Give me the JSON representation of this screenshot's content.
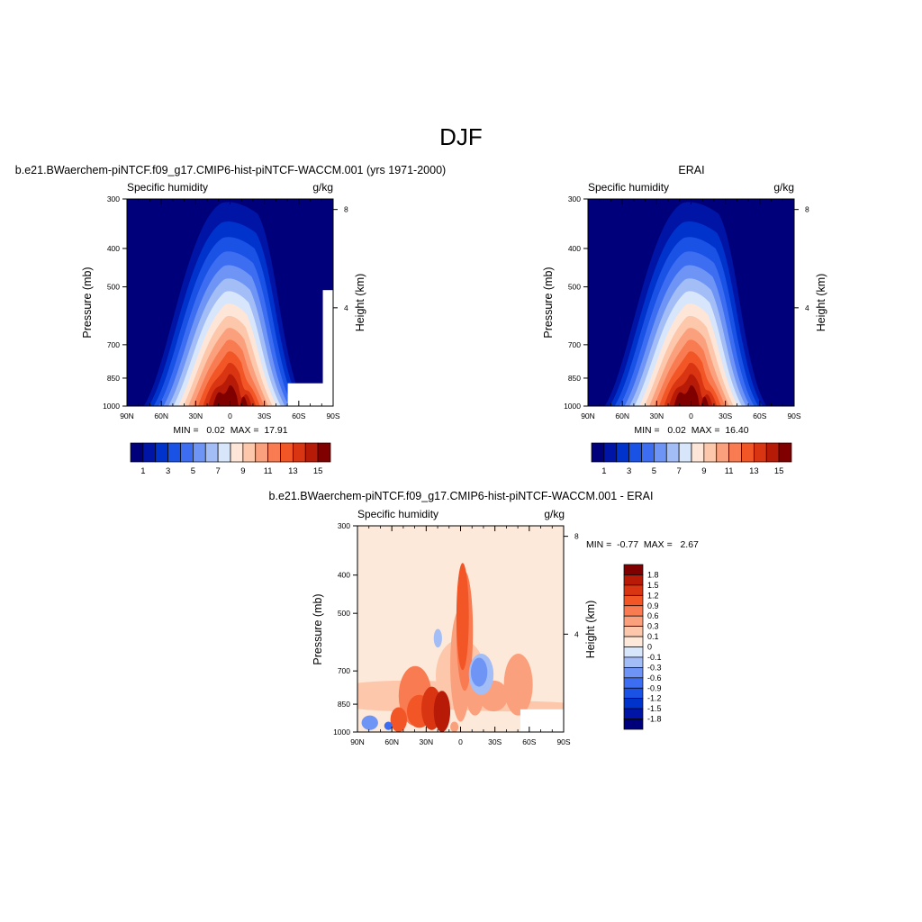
{
  "page": {
    "title": "DJF"
  },
  "colors": {
    "full": [
      "#00007a",
      "#0014a5",
      "#0033cc",
      "#1a52e6",
      "#3d6ef2",
      "#6e95f5",
      "#a3bdf7",
      "#d8e6fb",
      "#fde6d8",
      "#fcc7ab",
      "#fba07c",
      "#f97b51",
      "#f25526",
      "#d93512",
      "#b81a08",
      "#800000"
    ],
    "diff": [
      "#00007a",
      "#0014a5",
      "#0033cc",
      "#1a52e6",
      "#3d6ef2",
      "#6e95f5",
      "#a3bdf7",
      "#d8e6fb",
      "#fde9d9",
      "#fcc7ab",
      "#fba07c",
      "#f97b51",
      "#f25526",
      "#d93512",
      "#b81a08",
      "#800000"
    ]
  },
  "chart_data": [
    {
      "type": "heatmap",
      "title": "b.e21.BWaerchem-piNTCF.f09_g17.CMIP6-hist-piNTCF-WACCM.001 (yrs 1971-2000)",
      "left_label": "Specific humidity",
      "right_label": "g/kg",
      "ylabel": "Pressure (mb)",
      "ylabel_right": "Height (km)",
      "x_ticks": [
        "90N",
        "60N",
        "30N",
        "0",
        "30S",
        "60S",
        "90S"
      ],
      "y_ticks": [
        300,
        400,
        500,
        700,
        850,
        1000
      ],
      "height_ticks": [
        8,
        4
      ],
      "ylim": [
        1000,
        300
      ],
      "stats": "MIN =   0.02  MAX =  17.91",
      "colorbar_labels": [
        "1",
        "3",
        "5",
        "7",
        "9",
        "11",
        "13",
        "15"
      ],
      "peak_max": 17.91,
      "missing_region": "lower-right"
    },
    {
      "type": "heatmap",
      "title": "ERAI",
      "left_label": "Specific humidity",
      "right_label": "g/kg",
      "ylabel": "Pressure (mb)",
      "ylabel_right": "Height (km)",
      "x_ticks": [
        "90N",
        "60N",
        "30N",
        "0",
        "30S",
        "60S",
        "90S"
      ],
      "y_ticks": [
        300,
        400,
        500,
        700,
        850,
        1000
      ],
      "height_ticks": [
        8,
        4
      ],
      "ylim": [
        1000,
        300
      ],
      "stats": "MIN =   0.02  MAX =  16.40",
      "colorbar_labels": [
        "1",
        "3",
        "5",
        "7",
        "9",
        "11",
        "13",
        "15"
      ],
      "peak_max": 16.4
    },
    {
      "type": "heatmap",
      "title": "b.e21.BWaerchem-piNTCF.f09_g17.CMIP6-hist-piNTCF-WACCM.001 - ERAI",
      "left_label": "Specific humidity",
      "right_label": "g/kg",
      "ylabel": "Pressure (mb)",
      "ylabel_right": "Height (km)",
      "x_ticks": [
        "90N",
        "60N",
        "30N",
        "0",
        "30S",
        "60S",
        "90S"
      ],
      "y_ticks": [
        300,
        400,
        500,
        700,
        850,
        1000
      ],
      "height_ticks": [
        8,
        4
      ],
      "ylim": [
        1000,
        300
      ],
      "stats": "MIN =  -0.77  MAX =   2.67",
      "colorbar_labels": [
        "1.8",
        "1.5",
        "1.2",
        "0.9",
        "0.6",
        "0.3",
        "0.1",
        "0",
        "-0.1",
        "-0.3",
        "-0.6",
        "-0.9",
        "-1.2",
        "-1.5",
        "-1.8"
      ],
      "levels": [
        -1.8,
        -1.5,
        -1.2,
        -0.9,
        -0.6,
        -0.3,
        -0.1,
        0,
        0.1,
        0.3,
        0.6,
        0.9,
        1.2,
        1.5,
        1.8
      ]
    }
  ]
}
